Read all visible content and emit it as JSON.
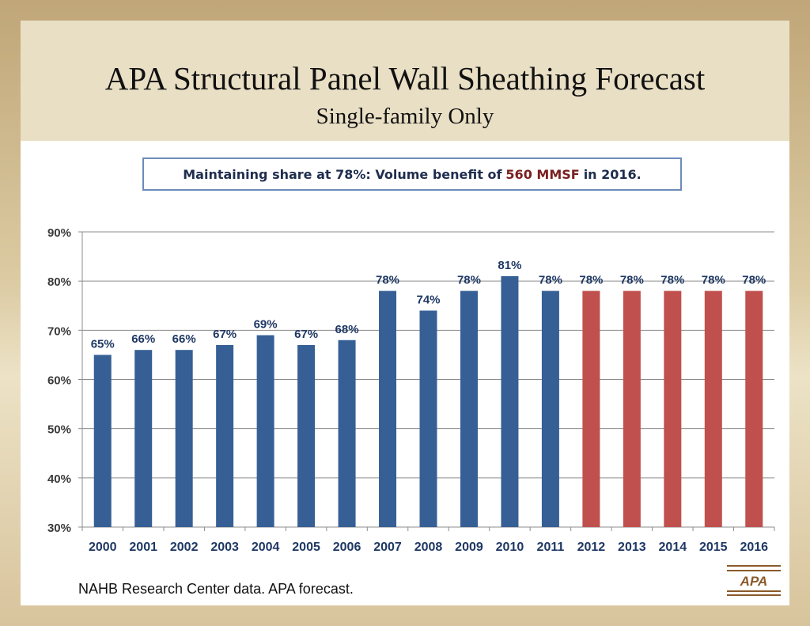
{
  "title": "APA Structural Panel Wall Sheathing Forecast",
  "subtitle": "Single-family Only",
  "callout": {
    "before": "Maintaining share at 78%: Volume benefit of",
    "highlight": "560 MMSF",
    "after": "in 2016.",
    "highlight_color": "#7a2020"
  },
  "footer_note": "NAHB Research Center data. APA forecast.",
  "logo_text": "APA",
  "chart_data": {
    "type": "bar",
    "categories": [
      "2000",
      "2001",
      "2002",
      "2003",
      "2004",
      "2005",
      "2006",
      "2007",
      "2008",
      "2009",
      "2010",
      "2011",
      "2012",
      "2013",
      "2014",
      "2015",
      "2016"
    ],
    "values": [
      65,
      66,
      66,
      67,
      69,
      67,
      68,
      78,
      74,
      78,
      81,
      78,
      78,
      78,
      78,
      78,
      78
    ],
    "data_labels": [
      "65%",
      "66%",
      "66%",
      "67%",
      "69%",
      "67%",
      "68%",
      "78%",
      "74%",
      "78%",
      "81%",
      "78%",
      "78%",
      "78%",
      "78%",
      "78%",
      "78%"
    ],
    "series_kind": [
      "actual",
      "actual",
      "actual",
      "actual",
      "actual",
      "actual",
      "actual",
      "actual",
      "actual",
      "actual",
      "actual",
      "actual",
      "forecast",
      "forecast",
      "forecast",
      "forecast",
      "forecast"
    ],
    "colors": {
      "actual": "#365f95",
      "forecast": "#c0504d"
    },
    "ylim": [
      30,
      90
    ],
    "yticks": [
      30,
      40,
      50,
      60,
      70,
      80,
      90
    ],
    "ytick_labels": [
      "30%",
      "40%",
      "50%",
      "60%",
      "70%",
      "80%",
      "90%"
    ],
    "grid": true,
    "xlabel": "",
    "ylabel": ""
  }
}
